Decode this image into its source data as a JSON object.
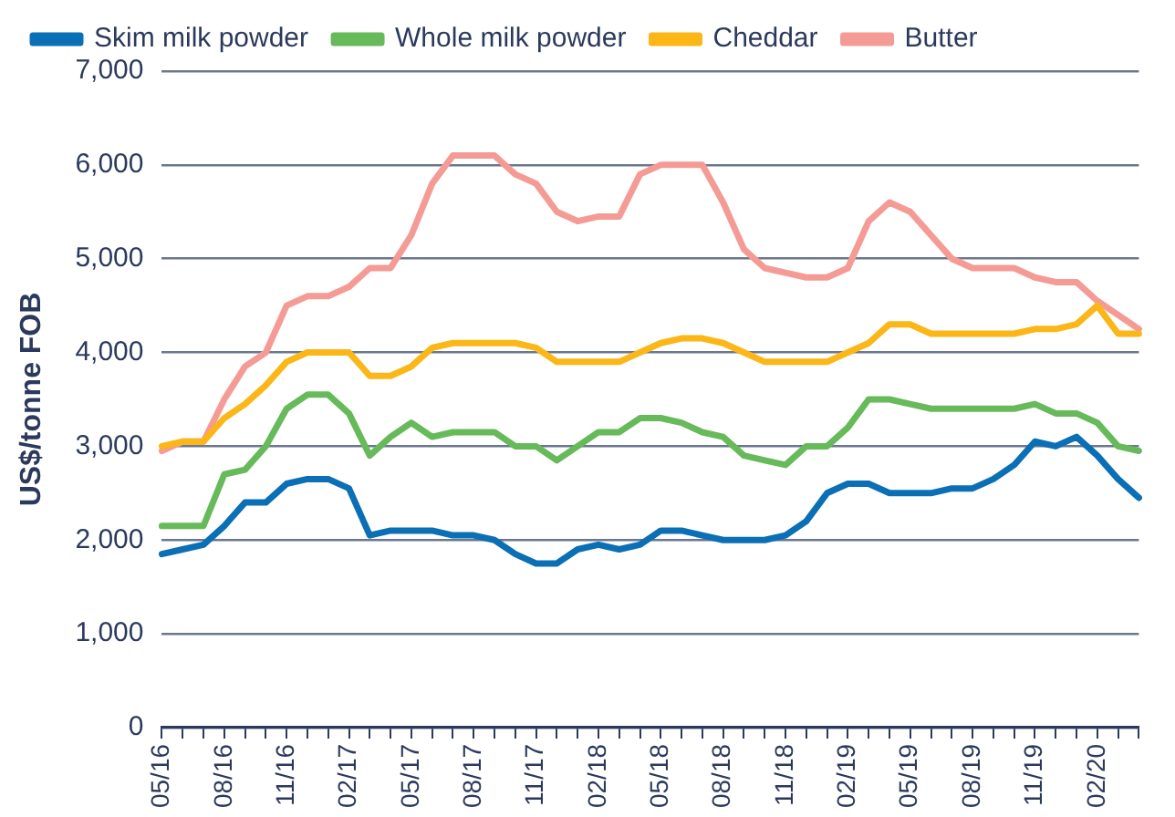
{
  "chart_data": {
    "type": "line",
    "ylabel": "US$/tonne FOB",
    "categories": [
      "05/16",
      null,
      null,
      "08/16",
      null,
      null,
      "11/16",
      null,
      null,
      "02/17",
      null,
      null,
      "05/17",
      null,
      null,
      "08/17",
      null,
      null,
      "11/17",
      null,
      null,
      "02/18",
      null,
      null,
      "05/18",
      null,
      null,
      "08/18",
      null,
      null,
      "11/18",
      null,
      null,
      "02/19",
      null,
      null,
      "05/19",
      null,
      null,
      "08/19",
      null,
      null,
      "11/19",
      null,
      null,
      "02/20",
      null,
      null
    ],
    "series": [
      {
        "name": "Skim milk powder",
        "color": "#0a6fb5",
        "values": [
          1850,
          1900,
          1950,
          2150,
          2400,
          2400,
          2600,
          2650,
          2650,
          2550,
          2050,
          2100,
          2100,
          2100,
          2050,
          2050,
          2000,
          1850,
          1750,
          1750,
          1900,
          1950,
          1900,
          1950,
          2100,
          2100,
          2050,
          2000,
          2000,
          2000,
          2050,
          2200,
          2500,
          2600,
          2600,
          2500,
          2500,
          2500,
          2550,
          2550,
          2650,
          2800,
          3050,
          3000,
          3100,
          2900,
          2650,
          2450
        ]
      },
      {
        "name": "Whole milk powder",
        "color": "#67ba5a",
        "values": [
          2150,
          2150,
          2150,
          2700,
          2750,
          3000,
          3400,
          3550,
          3550,
          3350,
          2900,
          3100,
          3250,
          3100,
          3150,
          3150,
          3150,
          3000,
          3000,
          2850,
          3000,
          3150,
          3150,
          3300,
          3300,
          3250,
          3150,
          3100,
          2900,
          2850,
          2800,
          3000,
          3000,
          3200,
          3500,
          3500,
          3450,
          3400,
          3400,
          3400,
          3400,
          3400,
          3450,
          3350,
          3350,
          3250,
          3000,
          2950
        ]
      },
      {
        "name": "Cheddar",
        "color": "#fbb617",
        "values": [
          3000,
          3050,
          3050,
          3300,
          3450,
          3650,
          3900,
          4000,
          4000,
          4000,
          3750,
          3750,
          3850,
          4050,
          4100,
          4100,
          4100,
          4100,
          4050,
          3900,
          3900,
          3900,
          3900,
          4000,
          4100,
          4150,
          4150,
          4100,
          4000,
          3900,
          3900,
          3900,
          3900,
          4000,
          4100,
          4300,
          4300,
          4200,
          4200,
          4200,
          4200,
          4200,
          4250,
          4250,
          4300,
          4500,
          4200,
          4200
        ]
      },
      {
        "name": "Butter",
        "color": "#f59b95",
        "values": [
          2950,
          3050,
          3050,
          3500,
          3850,
          4000,
          4500,
          4600,
          4600,
          4700,
          4900,
          4900,
          5250,
          5800,
          6100,
          6100,
          6100,
          5900,
          5800,
          5500,
          5400,
          5450,
          5450,
          5900,
          6000,
          6000,
          6000,
          5600,
          5100,
          4900,
          4850,
          4800,
          4800,
          4900,
          5400,
          5600,
          5500,
          5250,
          5000,
          4900,
          4900,
          4900,
          4800,
          4750,
          4750,
          4550,
          4400,
          4250
        ]
      }
    ],
    "ylim": [
      0,
      7000
    ],
    "yticks": [
      0,
      {
        "value": 1000,
        "label": "1,000"
      },
      {
        "value": 2000,
        "label": "2,000"
      },
      {
        "value": 3000,
        "label": "3,000"
      },
      {
        "value": 4000,
        "label": "4,000"
      },
      {
        "value": 5000,
        "label": "5,000"
      },
      {
        "value": 6000,
        "label": "6,000"
      },
      {
        "value": 7000,
        "label": "7,000"
      }
    ],
    "grid": "y",
    "legend": "top",
    "marker": "none",
    "line_style": "solid"
  }
}
